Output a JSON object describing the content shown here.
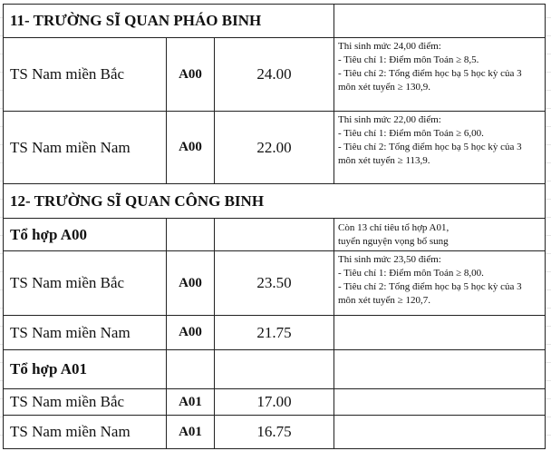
{
  "sections": [
    {
      "title": "11- TRƯỜNG SĨ QUAN PHÁO BINH",
      "rows": [
        {
          "name": "TS Nam miền Bắc",
          "combo": "A00",
          "score": "24.00",
          "note": [
            "Thi sinh mức 24,00 điểm:",
            "- Tiêu chí 1: Điểm môn Toán  ≥ 8,5.",
            "- Tiêu chí 2: Tổng điểm học bạ 5 học kỳ của 3",
            "môn xét tuyển ≥ 130,9."
          ]
        },
        {
          "name": "TS Nam miền Nam",
          "combo": "A00",
          "score": "22.00",
          "note": [
            "Thi sinh mức 22,00 điểm:",
            "- Tiêu chí 1: Điểm môn Toán  ≥ 6,00.",
            "- Tiêu chí 2: Tổng điểm học bạ 5 học kỳ của 3",
            "môn xét tuyển ≥ 113,9."
          ]
        }
      ]
    },
    {
      "title": "12- TRƯỜNG SĨ QUAN CÔNG BINH",
      "group_a00": {
        "label": "Tổ hợp A00",
        "note": [
          "Còn 13 chỉ tiêu tổ hợp A01,",
          "tuyển nguyện vọng bổ sung"
        ]
      },
      "rows_a00": [
        {
          "name": "TS Nam miền Bắc",
          "combo": "A00",
          "score": "23.50",
          "note": [
            "Thi sinh mức 23,50 điểm:",
            "- Tiêu chí 1: Điểm môn Toán  ≥ 8,00.",
            "- Tiêu chí 2: Tổng điểm học bạ 5 học kỳ của 3",
            "môn xét tuyển ≥ 120,7."
          ]
        },
        {
          "name": "TS Nam miền Nam",
          "combo": "A00",
          "score": "21.75"
        }
      ],
      "group_a01": {
        "label": "Tổ hợp A01"
      },
      "rows_a01": [
        {
          "name": "TS Nam miền Bắc",
          "combo": "A01",
          "score": "17.00"
        },
        {
          "name": "TS Nam miền Nam",
          "combo": "A01",
          "score": "16.75"
        }
      ]
    }
  ]
}
